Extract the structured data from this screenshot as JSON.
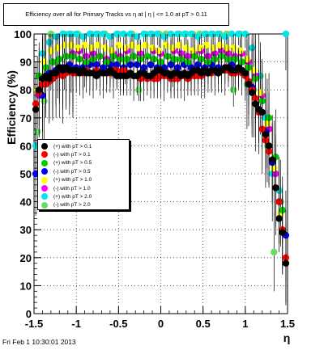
{
  "title": "Efficiency over all for Primary Tracks vs  η at | η | <= 1.0 at pT > 0.11",
  "footer": "Fri Feb  1 10:30:01 2013",
  "chart_data": {
    "type": "scatter",
    "title": "Efficiency over all for Primary Tracks vs  η at | η | <= 1.0 at pT > 0.11",
    "xlabel": "η",
    "ylabel": "Efficiency (%)",
    "xlim": [
      -1.5,
      1.5
    ],
    "ylim": [
      0,
      100
    ],
    "xticks": [
      "-1.5",
      "-1",
      "-0.5",
      "0",
      "0.5",
      "1",
      "1.5"
    ],
    "yticks": [
      "0",
      "10",
      "20",
      "30",
      "40",
      "50",
      "60",
      "70",
      "80",
      "90",
      "100"
    ],
    "grid": true,
    "legend_position": "middle-left",
    "series": [
      {
        "name": "(+) with pT > 0.1",
        "color": "#000000",
        "x": [
          -1.48,
          -1.44,
          -1.4,
          -1.36,
          -1.32,
          -1.28,
          -1.24,
          -1.2,
          -1.16,
          -1.12,
          -1.08,
          -1.04,
          -1.0,
          -0.96,
          -0.92,
          -0.88,
          -0.84,
          -0.8,
          -0.76,
          -0.72,
          -0.68,
          -0.64,
          -0.6,
          -0.56,
          -0.52,
          -0.48,
          -0.44,
          -0.4,
          -0.36,
          -0.32,
          -0.28,
          -0.24,
          -0.2,
          -0.16,
          -0.12,
          -0.08,
          -0.04,
          0.0,
          0.04,
          0.08,
          0.12,
          0.16,
          0.2,
          0.24,
          0.28,
          0.32,
          0.36,
          0.4,
          0.44,
          0.48,
          0.52,
          0.56,
          0.6,
          0.64,
          0.68,
          0.72,
          0.76,
          0.8,
          0.84,
          0.88,
          0.92,
          0.96,
          1.0,
          1.04,
          1.08,
          1.12,
          1.16,
          1.2,
          1.24,
          1.28,
          1.32,
          1.36,
          1.4,
          1.44,
          1.48
        ],
        "y": [
          73,
          80,
          84,
          85,
          84,
          86,
          86,
          88,
          87,
          88,
          87,
          87,
          87,
          86,
          87,
          86,
          86,
          86,
          85,
          86,
          86,
          86,
          87,
          86,
          85,
          85,
          85,
          85,
          86,
          85,
          85,
          86,
          86,
          85,
          85,
          86,
          87,
          87,
          86,
          86,
          85,
          86,
          86,
          85,
          86,
          85,
          86,
          87,
          87,
          86,
          87,
          86,
          87,
          87,
          86,
          87,
          88,
          88,
          87,
          87,
          88,
          87,
          86,
          82,
          79,
          75,
          73,
          72,
          64,
          60,
          55,
          45,
          34,
          29,
          18
        ]
      },
      {
        "name": "(-) with pT > 0.1",
        "color": "#ff0000",
        "x": [
          -1.48,
          -1.44,
          -1.4,
          -1.36,
          -1.32,
          -1.28,
          -1.24,
          -1.2,
          -1.16,
          -1.12,
          -1.08,
          -1.04,
          -1.0,
          -0.96,
          -0.92,
          -0.88,
          -0.84,
          -0.8,
          -0.76,
          -0.72,
          -0.68,
          -0.64,
          -0.6,
          -0.56,
          -0.52,
          -0.48,
          -0.44,
          -0.4,
          -0.36,
          -0.32,
          -0.28,
          -0.24,
          -0.2,
          -0.16,
          -0.12,
          -0.08,
          -0.04,
          0.0,
          0.04,
          0.08,
          0.12,
          0.16,
          0.2,
          0.24,
          0.28,
          0.32,
          0.36,
          0.4,
          0.44,
          0.48,
          0.52,
          0.56,
          0.6,
          0.64,
          0.68,
          0.72,
          0.76,
          0.8,
          0.84,
          0.88,
          0.92,
          0.96,
          1.0,
          1.04,
          1.08,
          1.12,
          1.16,
          1.2,
          1.24,
          1.28,
          1.32,
          1.36,
          1.4,
          1.44,
          1.48
        ],
        "y": [
          75,
          79,
          82,
          82,
          83,
          84,
          85,
          86,
          85,
          86,
          87,
          86,
          86,
          86,
          86,
          87,
          86,
          86,
          87,
          86,
          86,
          86,
          86,
          87,
          87,
          86,
          87,
          86,
          86,
          85,
          85,
          84,
          85,
          84,
          85,
          84,
          84,
          85,
          85,
          85,
          84,
          84,
          84,
          85,
          85,
          84,
          85,
          85,
          85,
          85,
          86,
          86,
          86,
          87,
          86,
          87,
          87,
          87,
          86,
          86,
          87,
          86,
          85,
          83,
          80,
          77,
          72,
          66,
          62,
          58,
          55,
          45,
          40,
          30,
          20
        ]
      },
      {
        "name": "(+) with pT > 0.5",
        "color": "#00cc00",
        "x": [
          -1.44,
          -1.36,
          -1.28,
          -1.2,
          -1.12,
          -1.04,
          -0.96,
          -0.88,
          -0.8,
          -0.72,
          -0.64,
          -0.56,
          -0.48,
          -0.4,
          -0.32,
          -0.24,
          -0.16,
          -0.08,
          0.0,
          0.08,
          0.16,
          0.24,
          0.32,
          0.4,
          0.48,
          0.56,
          0.64,
          0.72,
          0.8,
          0.88,
          0.96,
          1.04,
          1.12,
          1.2,
          1.28,
          1.36,
          1.44
        ],
        "y": [
          85,
          88,
          90,
          91,
          92,
          92,
          91,
          90,
          91,
          92,
          90,
          92,
          91,
          91,
          92,
          91,
          92,
          91,
          90,
          92,
          91,
          91,
          90,
          92,
          91,
          90,
          91,
          92,
          91,
          91,
          90,
          88,
          84,
          76,
          70,
          56,
          37
        ]
      },
      {
        "name": "(-) with pT > 0.5",
        "color": "#0000ff",
        "x": [
          -1.48,
          -1.4,
          -1.32,
          -1.24,
          -1.16,
          -1.08,
          -1.0,
          -0.92,
          -0.84,
          -0.76,
          -0.68,
          -0.6,
          -0.52,
          -0.44,
          -0.36,
          -0.28,
          -0.2,
          -0.12,
          -0.04,
          0.04,
          0.12,
          0.2,
          0.28,
          0.36,
          0.44,
          0.52,
          0.6,
          0.68,
          0.76,
          0.84,
          0.92,
          1.0,
          1.08,
          1.16,
          1.24,
          1.32,
          1.4,
          1.48
        ],
        "y": [
          50,
          78,
          86,
          87,
          88,
          89,
          88,
          88,
          89,
          89,
          88,
          89,
          89,
          88,
          89,
          89,
          88,
          89,
          88,
          88,
          89,
          88,
          89,
          88,
          89,
          88,
          89,
          88,
          88,
          89,
          88,
          86,
          81,
          73,
          65,
          54,
          40,
          28
        ]
      },
      {
        "name": "(+) with pT > 1.0",
        "color": "#ffff00",
        "x": [
          -1.46,
          -1.38,
          -1.3,
          -1.22,
          -1.14,
          -1.06,
          -0.98,
          -0.9,
          -0.82,
          -0.74,
          -0.66,
          -0.58,
          -0.5,
          -0.42,
          -0.34,
          -0.26,
          -0.18,
          -0.1,
          -0.02,
          0.06,
          0.14,
          0.22,
          0.3,
          0.38,
          0.46,
          0.54,
          0.62,
          0.7,
          0.78,
          0.86,
          0.94,
          1.02,
          1.1,
          1.18,
          1.26,
          1.34,
          1.42
        ],
        "y": [
          80,
          90,
          94,
          95,
          96,
          96,
          95,
          96,
          95,
          96,
          95,
          94,
          96,
          95,
          96,
          95,
          96,
          95,
          94,
          96,
          95,
          96,
          95,
          94,
          95,
          96,
          95,
          96,
          95,
          95,
          94,
          91,
          87,
          79,
          68,
          52,
          36
        ]
      },
      {
        "name": "(-) with pT > 1.0",
        "color": "#ff00ff",
        "x": [
          -1.44,
          -1.36,
          -1.28,
          -1.2,
          -1.12,
          -1.04,
          -0.96,
          -0.88,
          -0.8,
          -0.72,
          -0.64,
          -0.56,
          -0.48,
          -0.4,
          -0.32,
          -0.24,
          -0.16,
          -0.08,
          0.0,
          0.08,
          0.16,
          0.24,
          0.32,
          0.4,
          0.48,
          0.56,
          0.64,
          0.72,
          0.8,
          0.88,
          0.96,
          1.04,
          1.12,
          1.2,
          1.28,
          1.36,
          1.44
        ],
        "y": [
          78,
          88,
          90,
          91,
          92,
          93,
          94,
          92,
          93,
          92,
          91,
          93,
          92,
          94,
          92,
          93,
          92,
          94,
          93,
          92,
          94,
          93,
          92,
          93,
          94,
          92,
          93,
          94,
          93,
          92,
          93,
          90,
          85,
          78,
          66,
          50,
          29
        ]
      },
      {
        "name": "(+) with pT > 2.0",
        "color": "#00e5ee",
        "x": [
          -1.48,
          -1.4,
          -1.32,
          -1.24,
          -1.16,
          -1.08,
          -1.0,
          -0.92,
          -0.84,
          -0.76,
          -0.68,
          -0.6,
          -0.52,
          -0.44,
          -0.36,
          -0.28,
          -0.2,
          -0.12,
          -0.04,
          0.04,
          0.12,
          0.2,
          0.28,
          0.36,
          0.44,
          0.52,
          0.6,
          0.68,
          0.76,
          0.84,
          0.92,
          1.0,
          1.08,
          1.16,
          1.24,
          1.32,
          1.4,
          1.48
        ],
        "y": [
          60,
          93,
          97,
          99,
          100,
          100,
          100,
          99,
          100,
          100,
          100,
          99,
          100,
          100,
          100,
          99,
          100,
          100,
          100,
          99,
          100,
          100,
          100,
          100,
          99,
          100,
          100,
          100,
          99,
          100,
          100,
          100,
          95,
          85,
          70,
          50,
          44,
          100
        ]
      },
      {
        "name": "(-) with pT > 2.0",
        "color": "#66dd66",
        "x": [
          -1.46,
          -1.38,
          -1.3,
          -1.22,
          -1.14,
          -1.06,
          -0.98,
          -0.9,
          -0.82,
          -0.74,
          -0.66,
          -0.58,
          -0.5,
          -0.42,
          -0.34,
          -0.26,
          -0.18,
          -0.1,
          -0.02,
          0.06,
          0.14,
          0.22,
          0.3,
          0.38,
          0.46,
          0.54,
          0.62,
          0.7,
          0.78,
          0.86,
          0.94,
          1.02,
          1.1,
          1.18,
          1.26,
          1.34,
          1.42
        ],
        "y": [
          65,
          76,
          100,
          89,
          100,
          100,
          100,
          89,
          100,
          100,
          100,
          90,
          100,
          90,
          100,
          80,
          100,
          100,
          100,
          100,
          90,
          100,
          100,
          100,
          100,
          100,
          100,
          100,
          100,
          80,
          100,
          82,
          80,
          85,
          60,
          22,
          40
        ]
      }
    ]
  }
}
